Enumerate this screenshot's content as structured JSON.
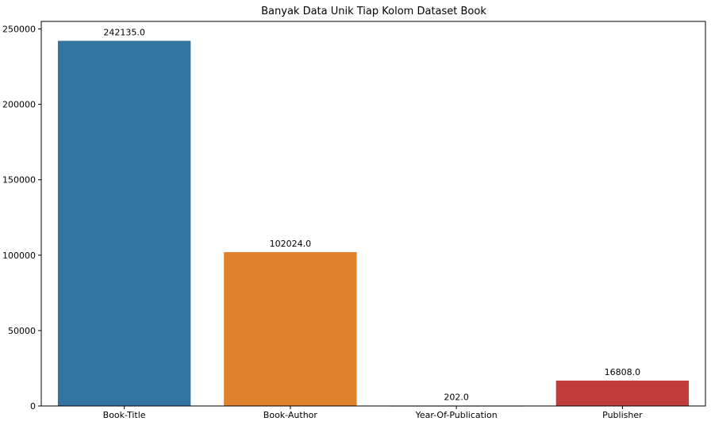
{
  "chart_data": {
    "type": "bar",
    "title": "Banyak Data Unik Tiap Kolom Dataset Book",
    "xlabel": "",
    "ylabel": "",
    "categories": [
      "Book-Title",
      "Book-Author",
      "Year-Of-Publication",
      "Publisher"
    ],
    "values": [
      242135,
      102024,
      202,
      16808
    ],
    "data_labels": [
      "242135.0",
      "102024.0",
      "202.0",
      "16808.0"
    ],
    "colors": [
      "#3274a1",
      "#e1812c",
      "#3a923a",
      "#c03d3e"
    ],
    "ylim": [
      0,
      255000
    ],
    "yticks": [
      0,
      50000,
      100000,
      150000,
      200000,
      250000
    ],
    "ytick_labels": [
      "0",
      "50000",
      "100000",
      "150000",
      "200000",
      "250000"
    ],
    "grid": false,
    "legend": "none"
  }
}
